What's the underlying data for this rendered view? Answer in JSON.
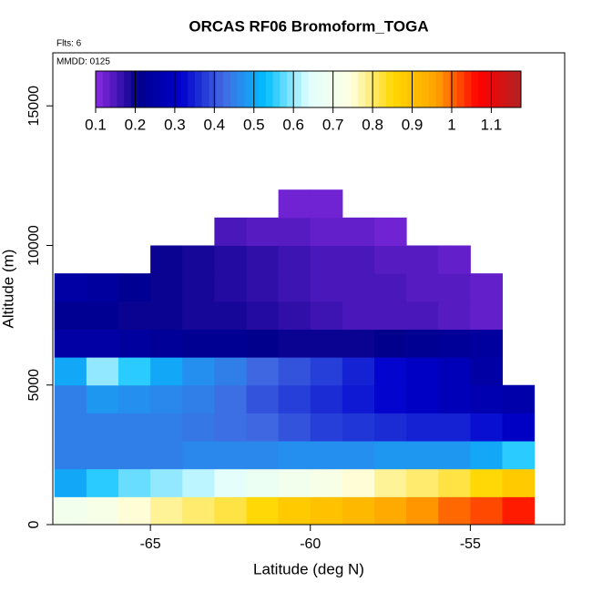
{
  "chart_data": {
    "type": "heatmap",
    "title": "ORCAS RF06 Bromoform_TOGA",
    "annotations": [
      "Flts: 6",
      "MMDD: 0125"
    ],
    "xlabel": "Latitude (deg N)",
    "ylabel": "Altitude (m)",
    "xlim": [
      -68.05,
      -52.05
    ],
    "xticks": [
      -65,
      -60,
      -55
    ],
    "ylim": [
      0,
      16900
    ],
    "yticks": [
      0,
      5000,
      10000,
      15000
    ],
    "x_edges": [
      -68,
      -67,
      -66,
      -65,
      -64,
      -63,
      -62,
      -61,
      -60,
      -59,
      -58,
      -57,
      -56,
      -55,
      -54,
      -53
    ],
    "y_edges": [
      0,
      1000,
      2000,
      3000,
      4000,
      5000,
      6000,
      7000,
      8000,
      9000,
      10000,
      11000,
      12000
    ],
    "z": [
      [
        0.7,
        0.72,
        0.75,
        0.78,
        0.8,
        0.82,
        0.85,
        0.88,
        0.9,
        0.92,
        0.95,
        0.97,
        1.0,
        1.02,
        1.05
      ],
      [
        0.5,
        0.55,
        0.58,
        0.6,
        0.62,
        0.65,
        0.68,
        0.7,
        0.72,
        0.75,
        0.78,
        0.8,
        0.82,
        0.85,
        0.88
      ],
      [
        0.45,
        0.45,
        0.45,
        0.45,
        0.46,
        0.46,
        0.46,
        0.47,
        0.47,
        0.47,
        0.48,
        0.48,
        0.48,
        0.5,
        0.55
      ],
      [
        0.45,
        0.45,
        0.45,
        0.45,
        0.44,
        0.43,
        0.42,
        0.4,
        0.38,
        0.37,
        0.36,
        0.35,
        0.35,
        0.33,
        0.3
      ],
      [
        0.45,
        0.48,
        0.47,
        0.46,
        0.45,
        0.43,
        0.4,
        0.38,
        0.36,
        0.34,
        0.32,
        0.3,
        0.28,
        0.27,
        0.26
      ],
      [
        0.5,
        0.6,
        0.55,
        0.5,
        0.47,
        0.45,
        0.42,
        0.4,
        0.38,
        0.35,
        0.32,
        0.3,
        0.28,
        0.25,
        null
      ],
      [
        0.25,
        0.25,
        0.24,
        0.23,
        0.22,
        0.22,
        0.21,
        0.2,
        0.2,
        0.2,
        0.21,
        0.22,
        0.23,
        0.24,
        null
      ],
      [
        0.22,
        0.22,
        0.2,
        0.2,
        0.19,
        0.19,
        0.18,
        0.17,
        0.16,
        0.15,
        0.15,
        0.15,
        0.14,
        0.13,
        null
      ],
      [
        0.25,
        0.24,
        0.22,
        0.2,
        0.19,
        0.18,
        0.17,
        0.16,
        0.15,
        0.15,
        0.15,
        0.14,
        0.14,
        0.13,
        null
      ],
      [
        null,
        null,
        null,
        0.2,
        0.19,
        0.18,
        0.17,
        0.16,
        0.15,
        0.15,
        0.14,
        0.14,
        0.13,
        null,
        null
      ],
      [
        null,
        null,
        null,
        null,
        null,
        0.15,
        0.14,
        0.14,
        0.13,
        0.13,
        0.12,
        null,
        null,
        null,
        null
      ],
      [
        null,
        null,
        null,
        null,
        null,
        null,
        null,
        0.12,
        0.12,
        null,
        null,
        null,
        null,
        null,
        null
      ]
    ],
    "zlim": [
      0.1,
      1.175
    ],
    "zticks": [
      0.1,
      0.2,
      0.3,
      0.4,
      0.5,
      0.6,
      0.7,
      0.8,
      0.9,
      1.0,
      1.1
    ],
    "colors": [
      "#8a2be2",
      "#00008b",
      "#0000cd",
      "#4169e1",
      "#00bfff",
      "#e0ffff",
      "#ffffe0",
      "#ffd700",
      "#ffa500",
      "#ff0000",
      "#b22222"
    ]
  }
}
